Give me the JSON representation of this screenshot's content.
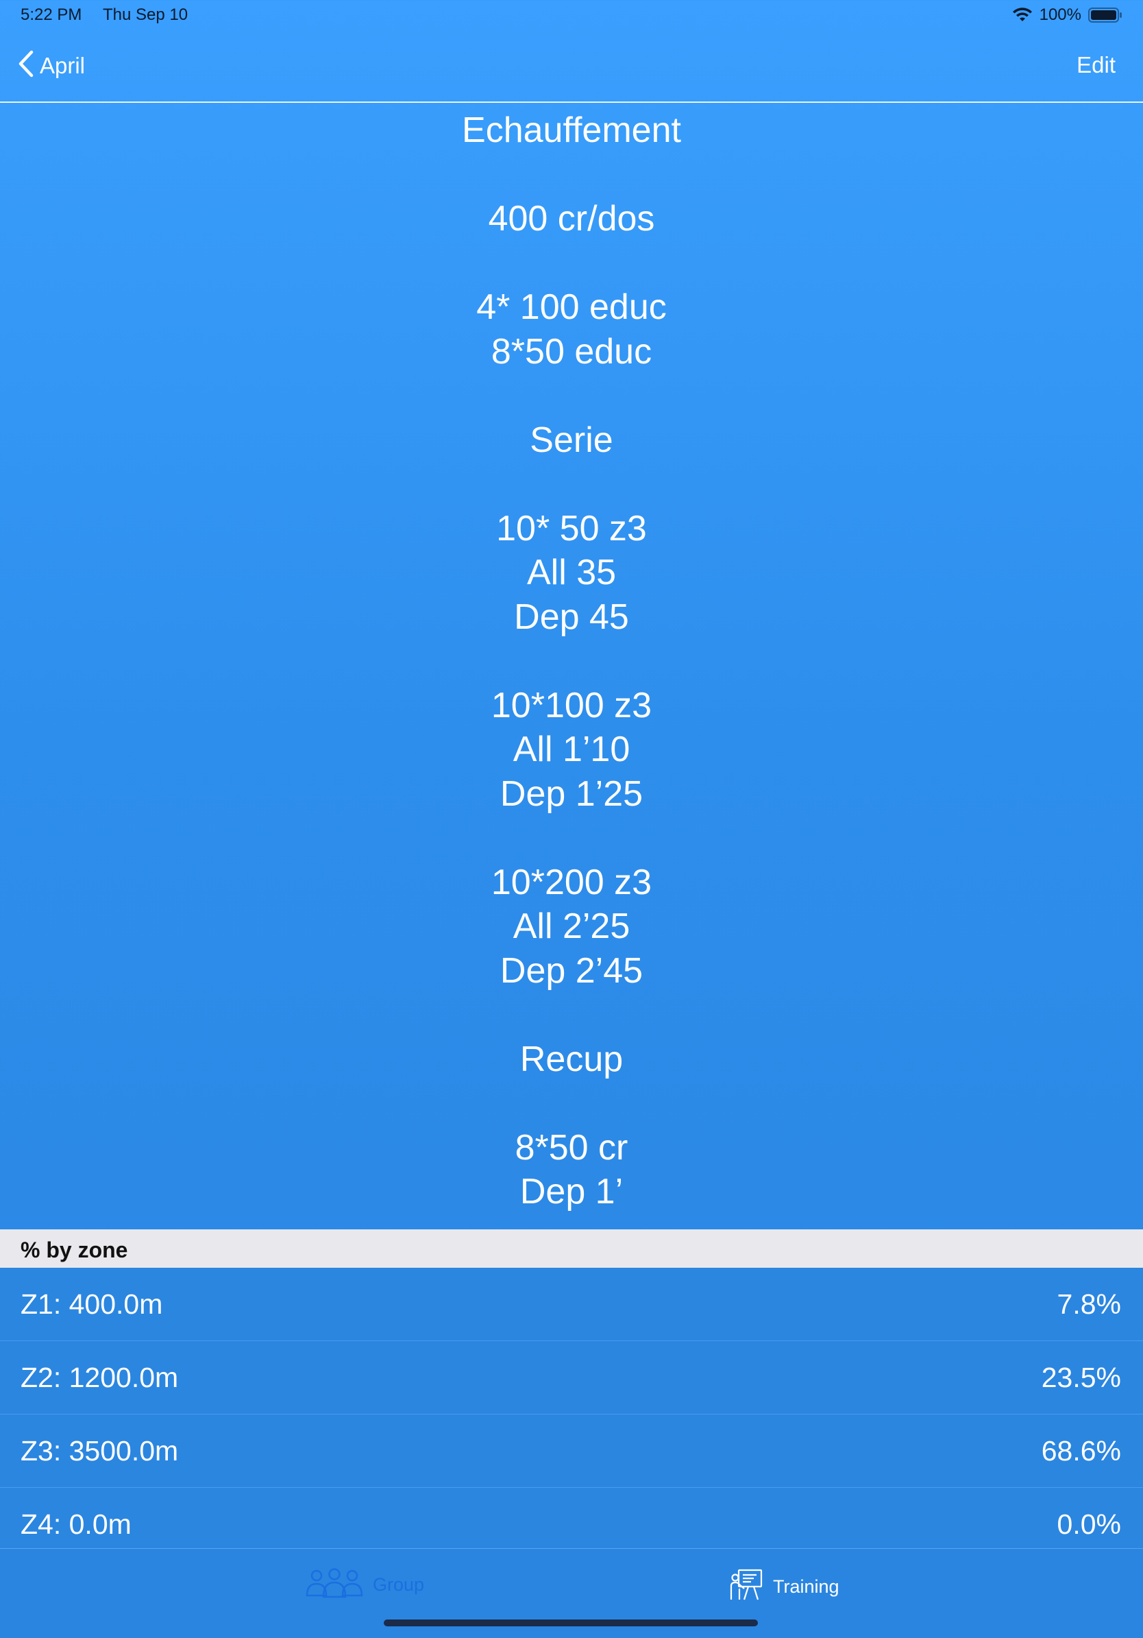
{
  "status_bar": {
    "time": "5:22 PM",
    "date": "Thu Sep 10",
    "battery": "100%",
    "icons": [
      "wifi-icon",
      "battery-icon"
    ]
  },
  "nav": {
    "back_label": "April",
    "edit_label": "Edit",
    "back_icon": "chevron-left-icon"
  },
  "workout_lines": [
    "Echauffement",
    "",
    "400 cr/dos",
    "",
    "4* 100 educ",
    "8*50 educ",
    "",
    "Serie",
    "",
    "10* 50 z3",
    "All 35",
    "Dep 45",
    "",
    "10*100 z3",
    "All 1’10",
    "Dep 1’25",
    "",
    "10*200 z3",
    "All 2’25",
    "Dep 2’45",
    "",
    "Recup",
    "",
    "8*50 cr",
    "Dep 1’"
  ],
  "zones": {
    "header": "% by zone",
    "rows": [
      {
        "label": "Z1: 400.0m",
        "percent": "7.8%"
      },
      {
        "label": "Z2: 1200.0m",
        "percent": "23.5%"
      },
      {
        "label": "Z3: 3500.0m",
        "percent": "68.6%"
      },
      {
        "label": "Z4: 0.0m",
        "percent": "0.0%"
      }
    ]
  },
  "tab_bar": {
    "tabs": [
      {
        "label": "Group",
        "icon": "group-icon",
        "selected": true
      },
      {
        "label": "Training",
        "icon": "trainer-board-icon",
        "selected": false
      }
    ]
  },
  "colors": {
    "background_top": "#3a9ffe",
    "background_bottom": "#2a85e0",
    "selected_tab": "#1a6fe0",
    "section_header": "#e9e9ed"
  }
}
